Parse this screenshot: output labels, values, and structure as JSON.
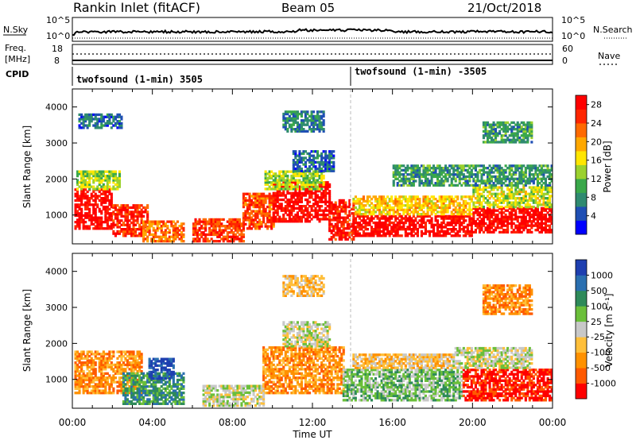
{
  "header": {
    "station": "Rankin Inlet (fitACF)",
    "beam": "Beam 05",
    "date": "21/Oct/2018"
  },
  "colors": {
    "power": [
      "#0000ff",
      "#1f4fb4",
      "#2f8a70",
      "#3aa84a",
      "#9bd12e",
      "#ffe600",
      "#ffa800",
      "#ff6a00",
      "#ff2600",
      "#ff0000"
    ],
    "velocity": [
      "#ff0000",
      "#ff5a00",
      "#ff9100",
      "#ffbf3a",
      "#c8c8c8",
      "#6bbf3a",
      "#2e8a5a",
      "#2a6fb0",
      "#1e3fb0"
    ]
  },
  "strip_panels": {
    "noise": {
      "left_label": "N.Sky",
      "left_ticks": [
        "10^5",
        "10^0"
      ],
      "right_label": "N.Search",
      "right_ticks": [
        "10^5",
        "10^0"
      ]
    },
    "freq": {
      "left_label": "Freq.",
      "left_unit": "[MHz]",
      "left_ticks": [
        "18",
        "8"
      ],
      "right_label": "Nave",
      "right_ticks": [
        "60",
        "0"
      ]
    },
    "cpid": {
      "label": "CPID",
      "segments": [
        "twofsound (1-min) 3505",
        "twofsound (1-min) -3505"
      ]
    }
  },
  "chart_data": [
    {
      "type": "heatmap",
      "name": "power",
      "ylabel": "Slant Range [km]",
      "xlabel": "",
      "xlim": [
        0,
        24
      ],
      "ylim": [
        200,
        4500
      ],
      "yticks": [
        1000,
        2000,
        3000,
        4000
      ],
      "colorbar": {
        "label": "Power [dB]",
        "ticks": [
          "4",
          "8",
          "12",
          "16",
          "20",
          "24",
          "28"
        ],
        "range": [
          0,
          30
        ]
      },
      "regions": [
        {
          "t0": 0.1,
          "t1": 2.0,
          "r0": 600,
          "r1": 1700,
          "value": 29
        },
        {
          "t0": 0.2,
          "t1": 2.4,
          "r0": 1700,
          "r1": 2200,
          "value": 14
        },
        {
          "t0": 2.0,
          "t1": 3.8,
          "r0": 400,
          "r1": 1300,
          "value": 26
        },
        {
          "t0": 3.5,
          "t1": 5.5,
          "r0": 250,
          "r1": 800,
          "value": 22
        },
        {
          "t0": 6.0,
          "t1": 8.5,
          "r0": 250,
          "r1": 900,
          "value": 25
        },
        {
          "t0": 8.5,
          "t1": 10.0,
          "r0": 600,
          "r1": 1600,
          "value": 24
        },
        {
          "t0": 10.0,
          "t1": 12.8,
          "r0": 800,
          "r1": 1900,
          "value": 29
        },
        {
          "t0": 9.6,
          "t1": 12.5,
          "r0": 1700,
          "r1": 2200,
          "value": 14
        },
        {
          "t0": 12.8,
          "t1": 14.0,
          "r0": 300,
          "r1": 1400,
          "value": 27
        },
        {
          "t0": 14.0,
          "t1": 20.0,
          "r0": 400,
          "r1": 1000,
          "value": 29
        },
        {
          "t0": 14.0,
          "t1": 20.0,
          "r0": 1000,
          "r1": 1500,
          "value": 18
        },
        {
          "t0": 20.0,
          "t1": 24.0,
          "r0": 500,
          "r1": 1200,
          "value": 29
        },
        {
          "t0": 20.0,
          "t1": 24.0,
          "r0": 1200,
          "r1": 1800,
          "value": 15
        },
        {
          "t0": 16.0,
          "t1": 24.0,
          "r0": 1800,
          "r1": 2400,
          "value": 9
        },
        {
          "t0": 0.3,
          "t1": 2.5,
          "r0": 3400,
          "r1": 3800,
          "value": 6
        },
        {
          "t0": 10.5,
          "t1": 12.5,
          "r0": 3300,
          "r1": 3900,
          "value": 7
        },
        {
          "t0": 20.5,
          "t1": 23.0,
          "r0": 3000,
          "r1": 3600,
          "value": 9
        },
        {
          "t0": 11.0,
          "t1": 13.0,
          "r0": 2200,
          "r1": 2800,
          "value": 6
        }
      ]
    },
    {
      "type": "heatmap",
      "name": "velocity",
      "ylabel": "Slant Range [km]",
      "xlabel": "Time UT",
      "xlim": [
        0,
        24
      ],
      "ylim": [
        200,
        4500
      ],
      "yticks": [
        1000,
        2000,
        3000,
        4000
      ],
      "xtick_labels": [
        "00:00",
        "04:00",
        "08:00",
        "12:00",
        "16:00",
        "20:00",
        "00:00"
      ],
      "colorbar": {
        "label": "Velocity [m s⁻¹]",
        "ticks": [
          "-1000",
          "-500",
          "-100",
          "-25",
          "25",
          "100",
          "500",
          "1000"
        ]
      },
      "regions": [
        {
          "t0": 0.1,
          "t1": 3.5,
          "r0": 600,
          "r1": 1800,
          "value": 2
        },
        {
          "t0": 2.5,
          "t1": 5.5,
          "r0": 300,
          "r1": 1200,
          "value": 6
        },
        {
          "t0": 3.8,
          "t1": 5.0,
          "r0": 1000,
          "r1": 1600,
          "value": 8
        },
        {
          "t0": 6.5,
          "t1": 9.5,
          "r0": 250,
          "r1": 800,
          "value": 4
        },
        {
          "t0": 9.5,
          "t1": 13.5,
          "r0": 600,
          "r1": 1900,
          "value": 2
        },
        {
          "t0": 10.5,
          "t1": 12.8,
          "r0": 1900,
          "r1": 2600,
          "value": 4
        },
        {
          "t0": 13.5,
          "t1": 19.5,
          "r0": 400,
          "r1": 1300,
          "value": 5
        },
        {
          "t0": 14.0,
          "t1": 19.0,
          "r0": 1300,
          "r1": 1700,
          "value": 3
        },
        {
          "t0": 19.5,
          "t1": 24.0,
          "r0": 400,
          "r1": 1300,
          "value": 0
        },
        {
          "t0": 19.0,
          "t1": 23.0,
          "r0": 1300,
          "r1": 1900,
          "value": 4
        },
        {
          "t0": 10.5,
          "t1": 12.5,
          "r0": 3300,
          "r1": 3900,
          "value": 3
        },
        {
          "t0": 20.5,
          "t1": 23.0,
          "r0": 2800,
          "r1": 3600,
          "value": 2
        }
      ]
    }
  ]
}
